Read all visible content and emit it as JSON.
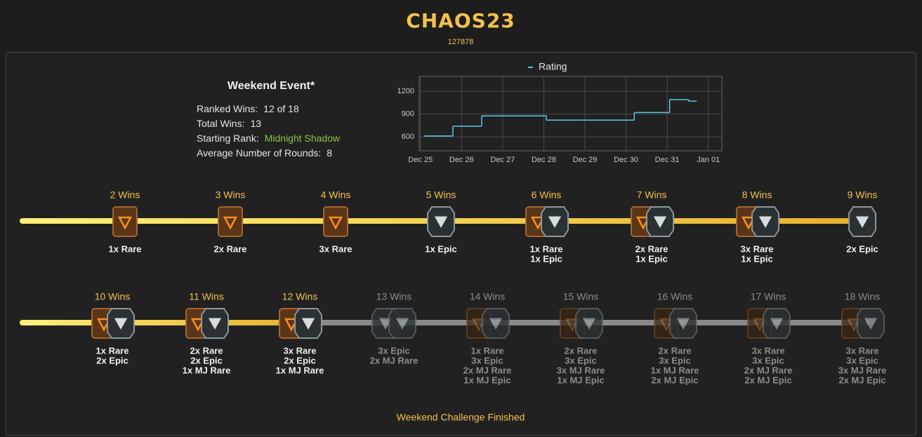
{
  "header": {
    "title": "CHAOS23",
    "id": "127878"
  },
  "stats": {
    "title": "Weekend Event*",
    "rows": [
      {
        "label": "Ranked Wins:",
        "value": "12 of 18"
      },
      {
        "label": "Total Wins:",
        "value": "13"
      },
      {
        "label": "Starting Rank:",
        "value": "Midnight Shadow"
      },
      {
        "label": "Average Number of Rounds:",
        "value": "8"
      }
    ]
  },
  "chart_data": {
    "type": "step-line",
    "series": [
      {
        "name": "Rating",
        "color": "#5bc8e8",
        "x": [
          0.09,
          0.79,
          1.49,
          3.06,
          5.2,
          6.06,
          6.52,
          6.71
        ],
        "values": [
          610,
          740,
          875,
          820,
          920,
          1090,
          1070,
          1070
        ]
      }
    ],
    "xlim": [
      -0.03,
      7.33
    ],
    "xticks": [
      {
        "value": 0,
        "label": "Dec 25"
      },
      {
        "value": 1,
        "label": "Dec 26"
      },
      {
        "value": 2,
        "label": "Dec 27"
      },
      {
        "value": 3,
        "label": "Dec 28"
      },
      {
        "value": 4,
        "label": "Dec 29"
      },
      {
        "value": 5,
        "label": "Dec 30"
      },
      {
        "value": 6,
        "label": "Dec 31"
      },
      {
        "value": 7,
        "label": "Jan 01"
      }
    ],
    "ylim": [
      415,
      1395
    ],
    "yticks": [
      600,
      900,
      1200
    ],
    "grid": true
  },
  "rewards": {
    "rows": [
      {
        "tiers": [
          {
            "wins": "2 Wins",
            "items": [
              "1x Rare"
            ],
            "achieved": true
          },
          {
            "wins": "3 Wins",
            "items": [
              "2x Rare"
            ],
            "achieved": true
          },
          {
            "wins": "4 Wins",
            "items": [
              "3x Rare"
            ],
            "achieved": true
          },
          {
            "wins": "5 Wins",
            "items": [
              "1x Epic"
            ],
            "achieved": true
          },
          {
            "wins": "6 Wins",
            "items": [
              "1x Rare",
              "1x Epic"
            ],
            "achieved": true
          },
          {
            "wins": "7 Wins",
            "items": [
              "2x Rare",
              "1x Epic"
            ],
            "achieved": true
          },
          {
            "wins": "8 Wins",
            "items": [
              "3x Rare",
              "1x Epic"
            ],
            "achieved": true
          },
          {
            "wins": "9 Wins",
            "items": [
              "2x Epic"
            ],
            "achieved": true
          }
        ]
      },
      {
        "tiers": [
          {
            "wins": "10 Wins",
            "items": [
              "1x Rare",
              "2x Epic"
            ],
            "achieved": true
          },
          {
            "wins": "11 Wins",
            "items": [
              "2x Rare",
              "2x Epic",
              "1x MJ Rare"
            ],
            "achieved": true
          },
          {
            "wins": "12 Wins",
            "items": [
              "3x Rare",
              "2x Epic",
              "1x MJ Rare"
            ],
            "achieved": true
          },
          {
            "wins": "13 Wins",
            "items": [
              "3x Epic",
              "2x MJ Rare"
            ],
            "achieved": false
          },
          {
            "wins": "14 Wins",
            "items": [
              "1x Rare",
              "3x Epic",
              "2x MJ Rare",
              "1x MJ Epic"
            ],
            "achieved": false
          },
          {
            "wins": "15 Wins",
            "items": [
              "2x Rare",
              "3x Epic",
              "3x MJ Rare",
              "1x MJ Epic"
            ],
            "achieved": false
          },
          {
            "wins": "16 Wins",
            "items": [
              "2x Rare",
              "3x Epic",
              "1x MJ Rare",
              "2x MJ Epic"
            ],
            "achieved": false
          },
          {
            "wins": "17 Wins",
            "items": [
              "3x Rare",
              "3x Epic",
              "2x MJ Rare",
              "2x MJ Epic"
            ],
            "achieved": false
          },
          {
            "wins": "18 Wins",
            "items": [
              "3x Rare",
              "3x Epic",
              "3x MJ Rare",
              "2x MJ Epic"
            ],
            "achieved": false
          }
        ]
      }
    ]
  },
  "footer": "Weekend Challenge Finished"
}
